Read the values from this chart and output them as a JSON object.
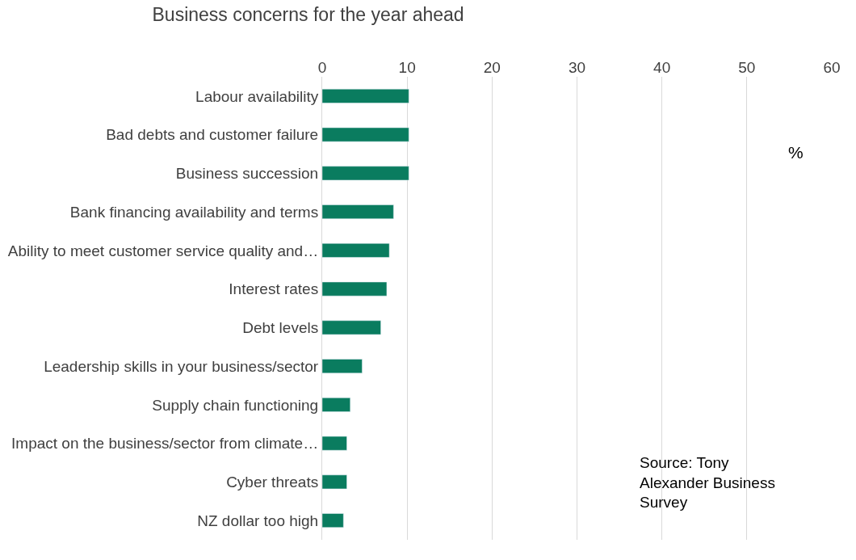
{
  "chart_data": {
    "type": "bar",
    "orientation": "horizontal",
    "title": "Business concerns for the year ahead",
    "categories": [
      "Labour availability",
      "Bad debts and customer failure",
      "Business succession",
      "Bank financing availability and terms",
      "Ability to meet customer service quality and…",
      "Interest rates",
      "Debt levels",
      "Leadership skills in your business/sector",
      "Supply chain functioning",
      "Impact on the business/sector from climate…",
      "Cyber threats",
      "NZ dollar too high"
    ],
    "values": [
      10.2,
      10.2,
      10.2,
      8.4,
      7.9,
      7.6,
      6.9,
      4.7,
      3.3,
      2.9,
      2.9,
      2.5
    ],
    "color": "#0a7c5f",
    "xlim": [
      0,
      60
    ],
    "xticks": [
      0,
      10,
      20,
      30,
      40,
      50,
      60
    ],
    "grid": "x",
    "annotations": [
      "%",
      "Source: Tony Alexander Business Survey"
    ]
  }
}
